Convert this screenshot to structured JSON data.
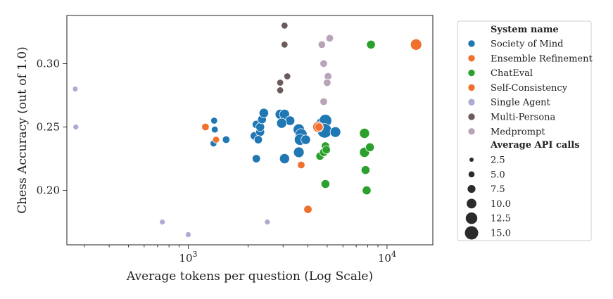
{
  "chart_data": {
    "type": "scatter",
    "title": "",
    "xlabel": "Average tokens per question (Log Scale)",
    "ylabel": "Chess Accuracy (out of 1.0)",
    "x_scale": "log",
    "xlim": [
      245,
      17000
    ],
    "ylim": [
      0.157,
      0.338
    ],
    "x_ticks": [
      {
        "value": 1000,
        "base": "10",
        "exp": "3"
      },
      {
        "value": 10000,
        "base": "10",
        "exp": "4"
      }
    ],
    "y_ticks": [
      {
        "value": 0.2,
        "label": "0.20"
      },
      {
        "value": 0.25,
        "label": "0.25"
      },
      {
        "value": 0.3,
        "label": "0.30"
      }
    ],
    "grid": false,
    "legend_placement": "outside-right",
    "legend_title_series": "System name",
    "legend_title_sizes": "Average API calls",
    "size_legend": [
      {
        "value": 2.5,
        "label": "2.5"
      },
      {
        "value": 5.0,
        "label": "5.0"
      },
      {
        "value": 7.5,
        "label": "7.5"
      },
      {
        "value": 10.0,
        "label": "10.0"
      },
      {
        "value": 12.5,
        "label": "12.5"
      },
      {
        "value": 15.0,
        "label": "15.0"
      }
    ],
    "series": [
      {
        "name": "Society of Mind",
        "color": "#1f77b4",
        "points": [
          {
            "x": 1350,
            "y": 0.255,
            "s": 3
          },
          {
            "x": 1360,
            "y": 0.248,
            "s": 3
          },
          {
            "x": 1340,
            "y": 0.237,
            "s": 3
          },
          {
            "x": 1550,
            "y": 0.24,
            "s": 4
          },
          {
            "x": 2200,
            "y": 0.225,
            "s": 5
          },
          {
            "x": 2150,
            "y": 0.243,
            "s": 5
          },
          {
            "x": 2200,
            "y": 0.252,
            "s": 5
          },
          {
            "x": 2300,
            "y": 0.246,
            "s": 6
          },
          {
            "x": 2300,
            "y": 0.25,
            "s": 6
          },
          {
            "x": 2350,
            "y": 0.256,
            "s": 6
          },
          {
            "x": 2400,
            "y": 0.261,
            "s": 7
          },
          {
            "x": 2250,
            "y": 0.24,
            "s": 5
          },
          {
            "x": 2900,
            "y": 0.26,
            "s": 8
          },
          {
            "x": 3050,
            "y": 0.26,
            "s": 8
          },
          {
            "x": 3250,
            "y": 0.255,
            "s": 7
          },
          {
            "x": 2950,
            "y": 0.253,
            "s": 8
          },
          {
            "x": 3050,
            "y": 0.225,
            "s": 8
          },
          {
            "x": 3600,
            "y": 0.248,
            "s": 10
          },
          {
            "x": 3700,
            "y": 0.244,
            "s": 11
          },
          {
            "x": 3650,
            "y": 0.24,
            "s": 10
          },
          {
            "x": 3900,
            "y": 0.24,
            "s": 7
          },
          {
            "x": 3600,
            "y": 0.23,
            "s": 9
          },
          {
            "x": 4700,
            "y": 0.253,
            "s": 10
          },
          {
            "x": 4900,
            "y": 0.255,
            "s": 12
          },
          {
            "x": 4850,
            "y": 0.247,
            "s": 15
          },
          {
            "x": 5500,
            "y": 0.246,
            "s": 9
          }
        ]
      },
      {
        "name": "Ensemble Refinement",
        "color": "#f07030",
        "points": [
          {
            "x": 1220,
            "y": 0.25,
            "s": 4
          },
          {
            "x": 1380,
            "y": 0.24,
            "s": 3
          },
          {
            "x": 3700,
            "y": 0.22,
            "s": 4
          },
          {
            "x": 4000,
            "y": 0.185,
            "s": 5
          },
          {
            "x": 4500,
            "y": 0.25,
            "s": 9
          },
          {
            "x": 14000,
            "y": 0.315,
            "s": 10
          }
        ]
      },
      {
        "name": "ChatEval",
        "color": "#2ca02c",
        "points": [
          {
            "x": 4600,
            "y": 0.227,
            "s": 5
          },
          {
            "x": 4800,
            "y": 0.23,
            "s": 5
          },
          {
            "x": 4900,
            "y": 0.235,
            "s": 5
          },
          {
            "x": 4950,
            "y": 0.232,
            "s": 5
          },
          {
            "x": 4900,
            "y": 0.205,
            "s": 6
          },
          {
            "x": 7700,
            "y": 0.245,
            "s": 8
          },
          {
            "x": 7700,
            "y": 0.23,
            "s": 8
          },
          {
            "x": 7800,
            "y": 0.216,
            "s": 6
          },
          {
            "x": 7900,
            "y": 0.2,
            "s": 6
          },
          {
            "x": 8200,
            "y": 0.234,
            "s": 6
          },
          {
            "x": 8300,
            "y": 0.315,
            "s": 6
          }
        ]
      },
      {
        "name": "Self-Consistency",
        "color": "#f07030",
        "points": [
          {
            "x": 4550,
            "y": 0.25,
            "s": 5
          }
        ]
      },
      {
        "name": "Single Agent",
        "color": "#8c8cc8",
        "points": [
          {
            "x": 270,
            "y": 0.28,
            "s": 1
          },
          {
            "x": 272,
            "y": 0.25,
            "s": 1
          },
          {
            "x": 740,
            "y": 0.175,
            "s": 1
          },
          {
            "x": 1000,
            "y": 0.165,
            "s": 1
          },
          {
            "x": 2500,
            "y": 0.175,
            "s": 1
          }
        ]
      },
      {
        "name": "Multi-Persona",
        "color": "#6b5b5b",
        "points": [
          {
            "x": 2900,
            "y": 0.279,
            "s": 3
          },
          {
            "x": 2900,
            "y": 0.285,
            "s": 3
          },
          {
            "x": 3050,
            "y": 0.315,
            "s": 3
          },
          {
            "x": 3050,
            "y": 0.33,
            "s": 3
          },
          {
            "x": 3150,
            "y": 0.29,
            "s": 3
          }
        ]
      },
      {
        "name": "Medprompt",
        "color": "#b8a4b8",
        "points": [
          {
            "x": 4700,
            "y": 0.315,
            "s": 4
          },
          {
            "x": 5150,
            "y": 0.32,
            "s": 4
          },
          {
            "x": 4800,
            "y": 0.3,
            "s": 4
          },
          {
            "x": 5050,
            "y": 0.29,
            "s": 4
          },
          {
            "x": 5000,
            "y": 0.285,
            "s": 4
          },
          {
            "x": 4800,
            "y": 0.27,
            "s": 4
          }
        ]
      }
    ]
  }
}
